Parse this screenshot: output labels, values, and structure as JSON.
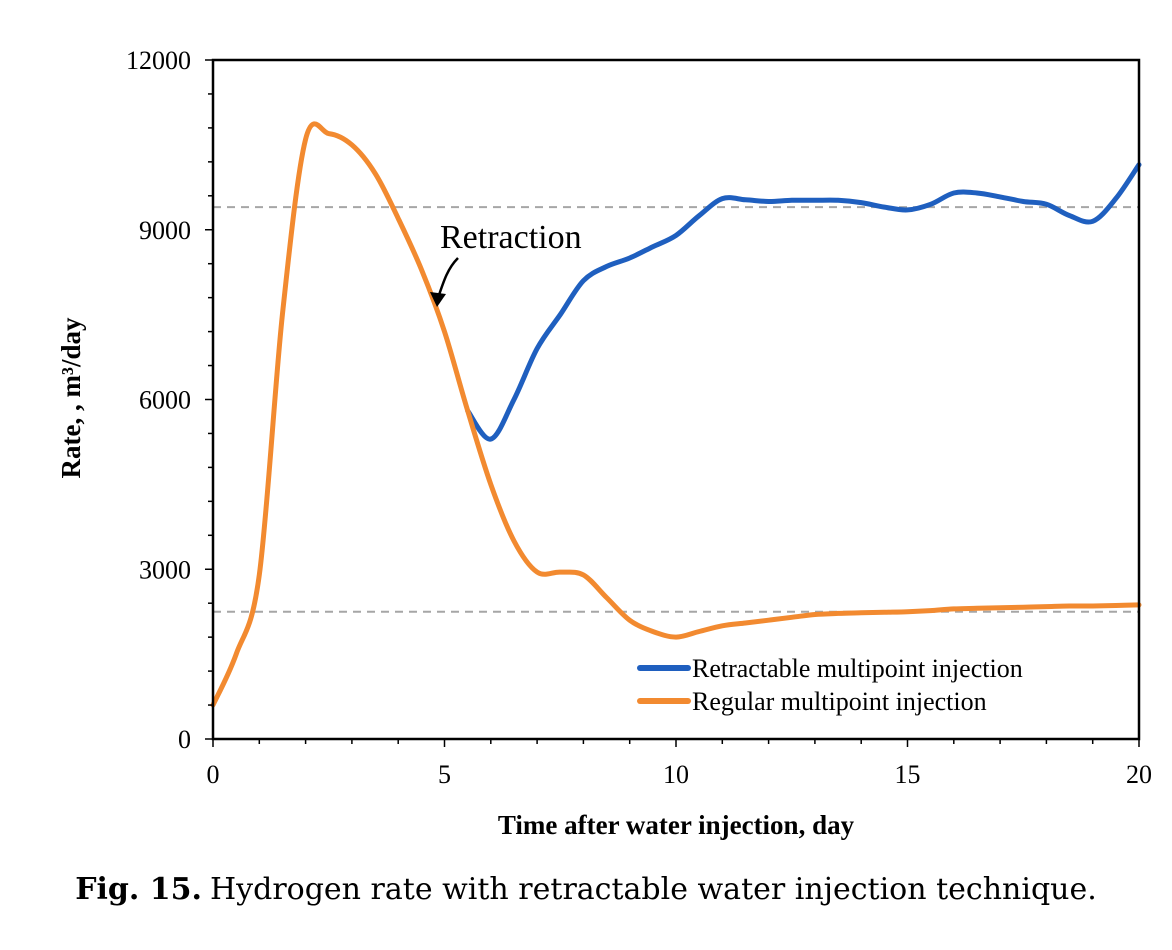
{
  "chart_data": {
    "type": "line",
    "xlabel": "Time after water injection, day",
    "ylabel": "Rate, , m³/day",
    "xlim": [
      0,
      20
    ],
    "ylim": [
      0,
      12000
    ],
    "xticks": [
      0,
      5,
      10,
      15,
      20
    ],
    "yticks": [
      0,
      3000,
      6000,
      9000,
      12000
    ],
    "grid": false,
    "legend_position": "bottom-right",
    "series": [
      {
        "name": "Retractable multipoint injection",
        "color": "#1f5fbf",
        "x": [
          5.5,
          6.0,
          6.5,
          7.0,
          7.5,
          8.0,
          8.5,
          9.0,
          9.5,
          10.0,
          10.5,
          11.0,
          11.5,
          12.0,
          12.5,
          13.0,
          13.5,
          14.0,
          14.5,
          15.0,
          15.5,
          16.0,
          16.5,
          17.0,
          17.5,
          18.0,
          18.5,
          19.0,
          19.5,
          20.0
        ],
        "y": [
          5800,
          5300,
          6000,
          6900,
          7500,
          8100,
          8350,
          8500,
          8700,
          8900,
          9250,
          9550,
          9530,
          9500,
          9520,
          9520,
          9520,
          9480,
          9400,
          9350,
          9450,
          9650,
          9650,
          9580,
          9500,
          9450,
          9250,
          9150,
          9550,
          10150
        ]
      },
      {
        "name": "Regular multipoint injection",
        "color": "#f28a30",
        "x": [
          0,
          0.5,
          1.0,
          1.5,
          2.0,
          2.5,
          3.0,
          3.5,
          4.0,
          4.5,
          5.0,
          5.5,
          6.0,
          6.5,
          7.0,
          7.5,
          8.0,
          8.5,
          9.0,
          9.5,
          10.0,
          10.5,
          11.0,
          11.5,
          12.0,
          12.5,
          13.0,
          13.5,
          14.0,
          14.5,
          15.0,
          15.5,
          16.0,
          16.5,
          17.0,
          17.5,
          18.0,
          18.5,
          19.0,
          19.5,
          20.0
        ],
        "y": [
          600,
          1500,
          2900,
          7500,
          10600,
          10700,
          10500,
          10000,
          9200,
          8300,
          7200,
          5800,
          4500,
          3500,
          2950,
          2950,
          2900,
          2500,
          2100,
          1900,
          1800,
          1900,
          2000,
          2050,
          2100,
          2150,
          2200,
          2220,
          2230,
          2240,
          2250,
          2270,
          2300,
          2310,
          2320,
          2330,
          2340,
          2350,
          2350,
          2360,
          2370
        ]
      }
    ],
    "reference_lines": [
      {
        "y": 9400,
        "color": "#a6a6a6",
        "style": "dashed"
      },
      {
        "y": 2250,
        "color": "#a6a6a6",
        "style": "dashed"
      }
    ],
    "annotations": [
      {
        "text": "Retraction",
        "x": 4.8,
        "y": 7600
      }
    ]
  },
  "caption": {
    "label": "Fig. 15.",
    "text": "Hydrogen rate with retractable water injection technique."
  }
}
